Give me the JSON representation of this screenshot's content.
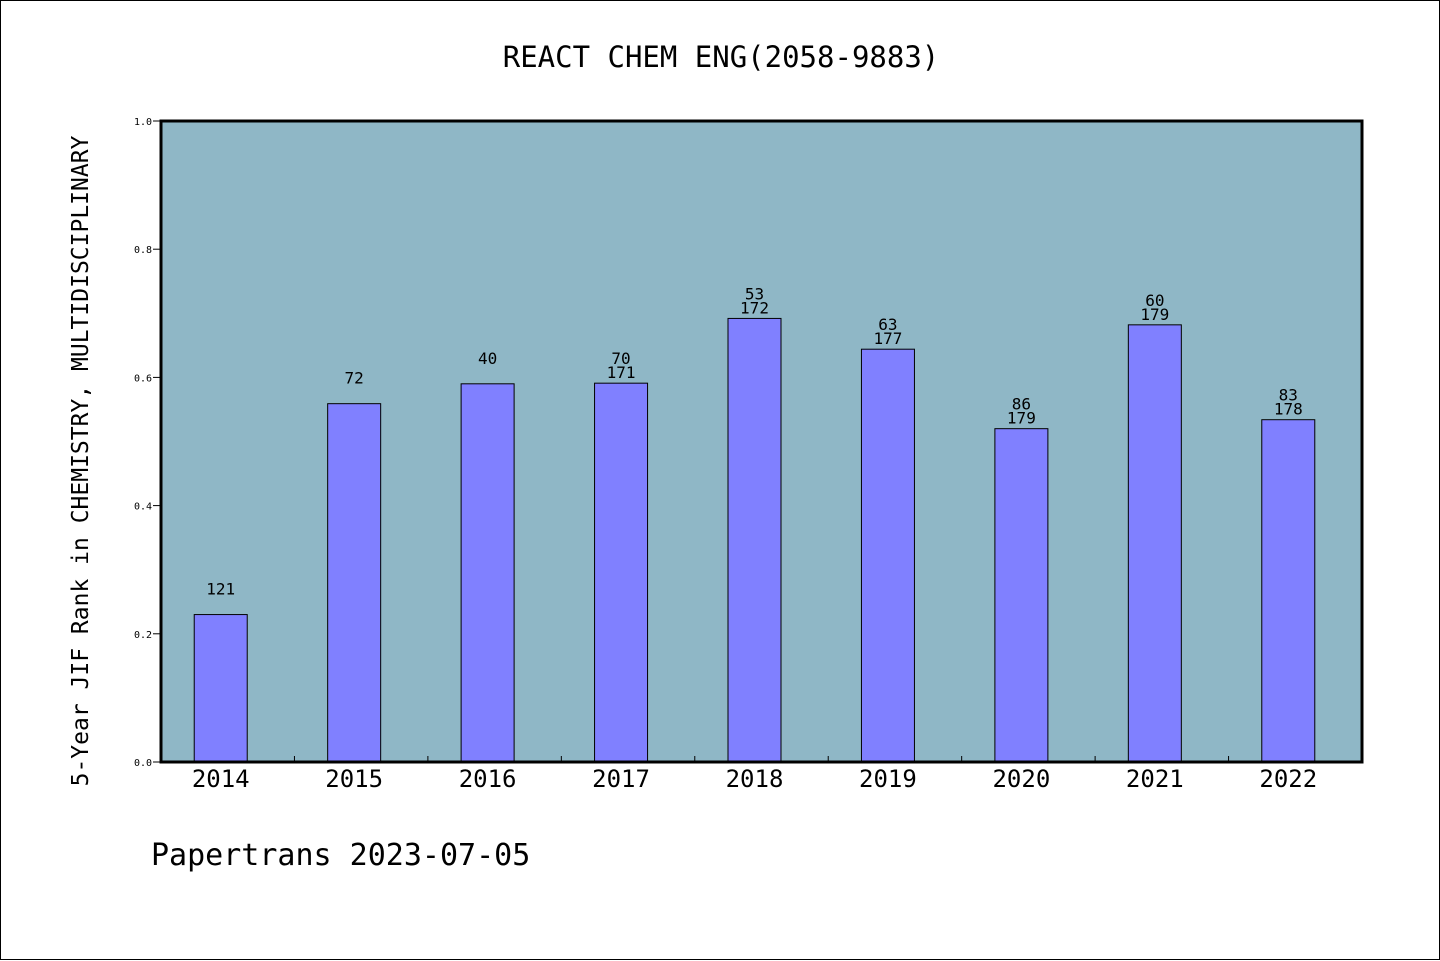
{
  "chart_data": {
    "type": "bar",
    "title": "REACT CHEM ENG(2058-9883)",
    "xlabel": "",
    "ylabel": "5-Year JIF Rank in CHEMISTRY, MULTIDISCIPLINARY",
    "ylim": [
      0,
      1.0
    ],
    "yticks": [
      "0.0",
      "0.2",
      "0.4",
      "0.6",
      "0.8",
      "1.0"
    ],
    "categories": [
      "2014",
      "2015",
      "2016",
      "2017",
      "2018",
      "2019",
      "2020",
      "2021",
      "2022"
    ],
    "series": [
      {
        "values": [
          0.23,
          0.559,
          0.59,
          0.591,
          0.692,
          0.644,
          0.52,
          0.682,
          0.534
        ],
        "labels_rank": [
          "121",
          "72",
          "40",
          "70",
          "53",
          "63",
          "86",
          "60",
          "83"
        ],
        "labels_total": [
          "",
          "",
          "",
          "171",
          "172",
          "177",
          "179",
          "179",
          "178"
        ]
      }
    ],
    "grid": false,
    "legend": "none",
    "colors": {
      "plot_background": "#8fb7c6",
      "bar_fill": "#8080ff",
      "bar_stroke": "#000000",
      "axis": "#000000",
      "text": "#000000"
    }
  },
  "footer": {
    "watermark": "Papertrans 2023-07-05"
  }
}
